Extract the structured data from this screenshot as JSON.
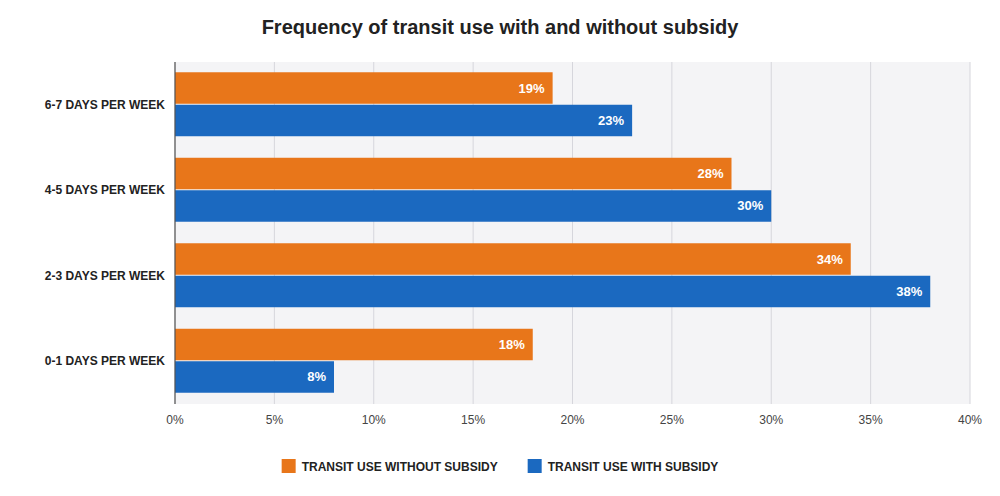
{
  "chart_data": {
    "type": "bar",
    "orientation": "horizontal",
    "title": "Frequency of transit use with and without subsidy",
    "categories": [
      "6-7 DAYS PER WEEK",
      "4-5 DAYS PER WEEK",
      "2-3 DAYS PER WEEK",
      "0-1 DAYS PER WEEK"
    ],
    "series": [
      {
        "name": "TRANSIT USE WITHOUT SUBSIDY",
        "color": "#E8761A",
        "values": [
          19,
          28,
          34,
          18
        ],
        "value_labels": [
          "19%",
          "28%",
          "34%",
          "18%"
        ]
      },
      {
        "name": "TRANSIT USE WITH SUBSIDY",
        "color": "#1B69C0",
        "values": [
          23,
          30,
          38,
          8
        ],
        "value_labels": [
          "23%",
          "30%",
          "38%",
          "8%"
        ]
      }
    ],
    "xlim": [
      0,
      40
    ],
    "xticks": [
      {
        "value": 0,
        "label": "0%"
      },
      {
        "value": 5,
        "label": "5%"
      },
      {
        "value": 10,
        "label": "10%"
      },
      {
        "value": 15,
        "label": "15%"
      },
      {
        "value": 20,
        "label": "20%"
      },
      {
        "value": 25,
        "label": "25%"
      },
      {
        "value": 30,
        "label": "30%"
      },
      {
        "value": 35,
        "label": "35%"
      },
      {
        "value": 40,
        "label": "40%"
      }
    ],
    "grid": true,
    "legend": "bottom",
    "data_labels": true
  }
}
